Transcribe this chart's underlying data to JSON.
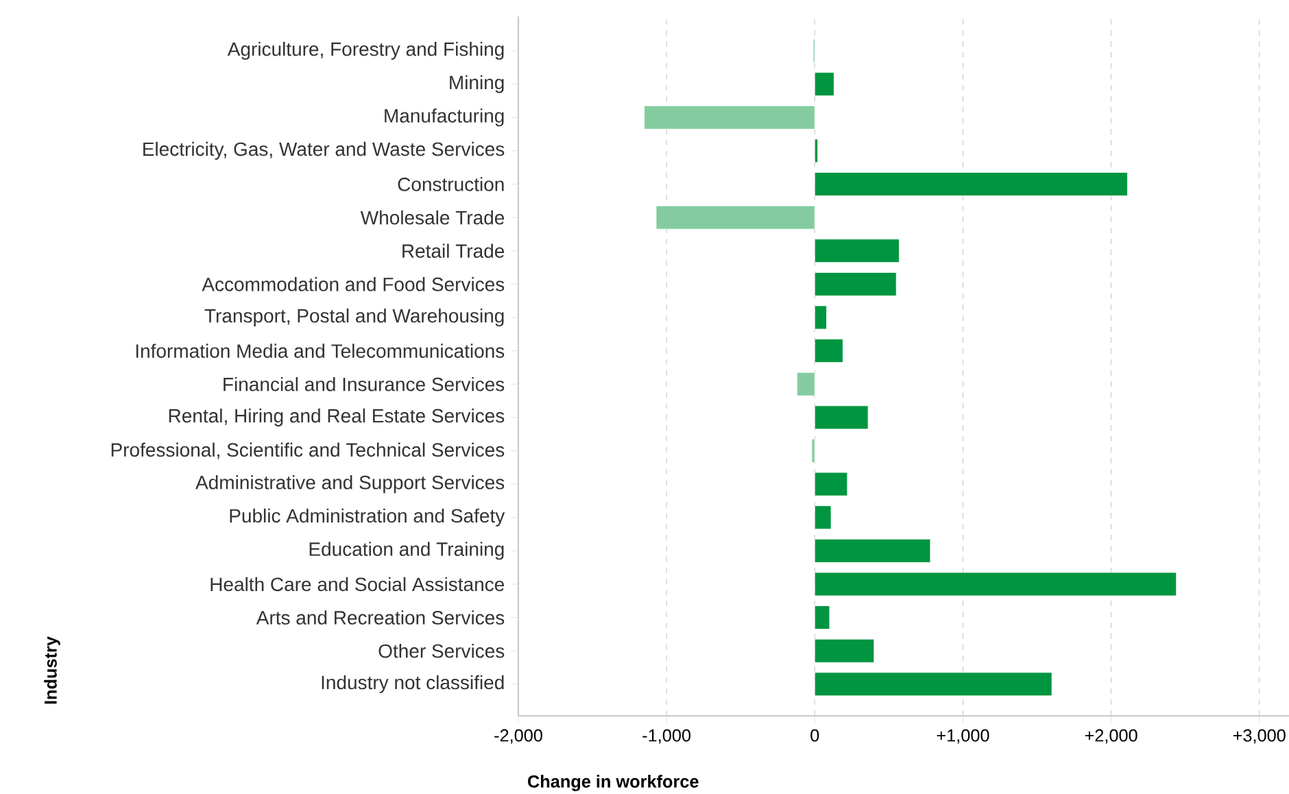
{
  "chart_data": {
    "type": "bar",
    "orientation": "horizontal",
    "xlabel": "Change in workforce",
    "ylabel": "Industry",
    "categories": [
      "Agriculture, Forestry and Fishing",
      "Mining",
      "Manufacturing",
      "Electricity, Gas, Water and Waste Services",
      "Construction",
      "Wholesale Trade",
      "Retail Trade",
      "Accommodation and Food Services",
      "Transport, Postal and Warehousing",
      "Information Media and Telecommunications",
      "Financial and Insurance Services",
      "Rental, Hiring and Real Estate Services",
      "Professional, Scientific and Technical Services",
      "Administrative and Support Services",
      "Public Administration and Safety",
      "Education and Training",
      "Health Care and Social Assistance",
      "Arts and Recreation Services",
      "Other Services",
      "Industry not classified"
    ],
    "values": [
      -10,
      130,
      -1150,
      20,
      2110,
      -1070,
      570,
      550,
      80,
      190,
      -120,
      360,
      -20,
      220,
      110,
      780,
      2440,
      100,
      400,
      1600
    ],
    "colors": [
      "#84cca0",
      "#009540",
      "#84cca0",
      "#009540",
      "#009540",
      "#84cca0",
      "#009540",
      "#009540",
      "#009540",
      "#009540",
      "#84cca0",
      "#009540",
      "#84cca0",
      "#009540",
      "#009540",
      "#009540",
      "#009540",
      "#009540",
      "#009540",
      "#009540"
    ],
    "xlim": [
      -2000,
      3200
    ],
    "xticks": [
      {
        "value": -2000,
        "label": "-2,000"
      },
      {
        "value": -1000,
        "label": "-1,000"
      },
      0,
      {
        "value": 1000,
        "label": "+1,000"
      },
      {
        "value": 2000,
        "label": "+2,000"
      },
      {
        "value": 3000,
        "label": "+3,000"
      }
    ],
    "grid": "x"
  }
}
